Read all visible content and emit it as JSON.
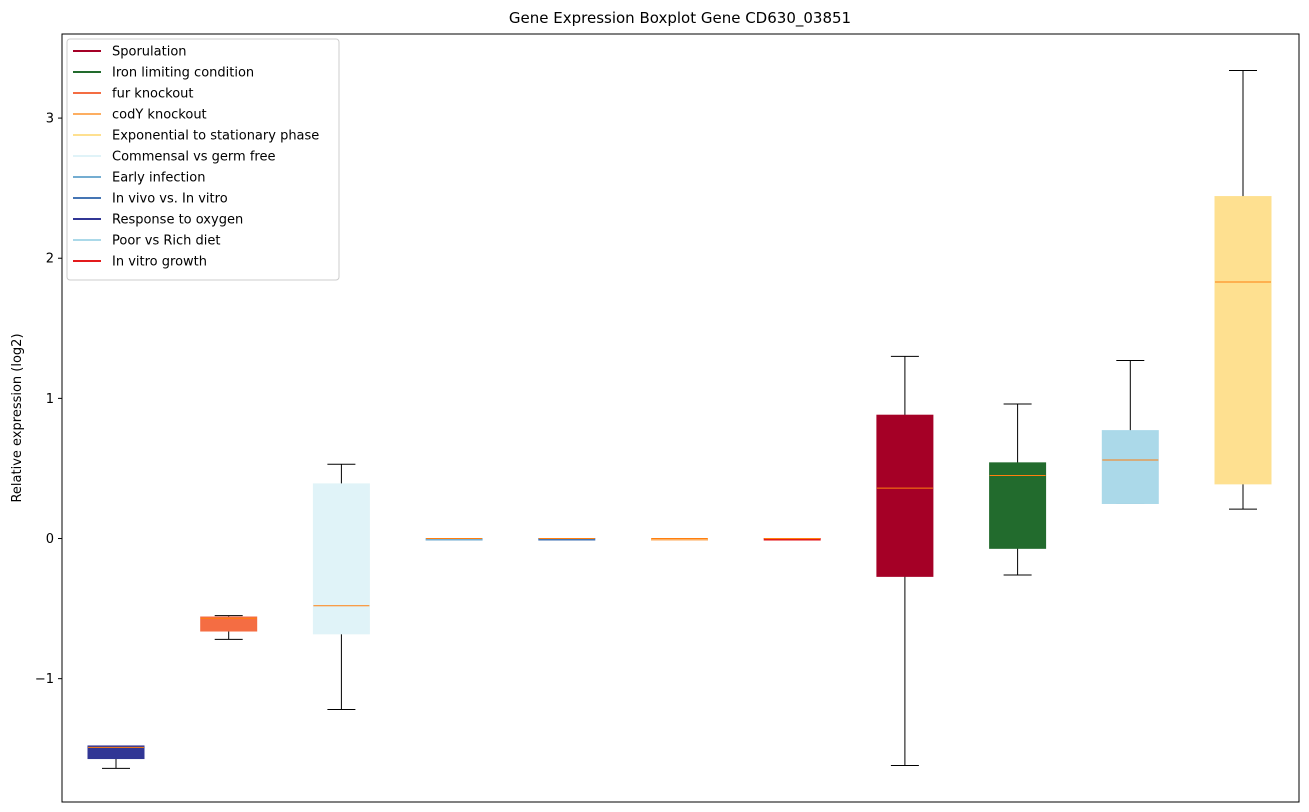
{
  "chart_data": {
    "type": "boxplot",
    "title": "Gene Expression Boxplot Gene CD630_03851",
    "xlabel": "",
    "ylabel": "Relative expression (log2)",
    "ylim": [
      -1.88,
      3.6
    ],
    "yticks": [
      -1,
      0,
      1,
      2,
      3
    ],
    "yticklabels": [
      "−1",
      "0",
      "1",
      "2",
      "3"
    ],
    "grid": false,
    "legend_position": "top-left",
    "legend": [
      {
        "label": "Sporulation",
        "color": "#a50026"
      },
      {
        "label": "Iron limiting condition",
        "color": "#226b2d"
      },
      {
        "label": "fur knockout",
        "color": "#f46d43"
      },
      {
        "label": "codY knockout",
        "color": "#fdae61"
      },
      {
        "label": "Exponential to stationary phase",
        "color": "#fee090"
      },
      {
        "label": "Commensal vs germ free",
        "color": "#e0f3f8"
      },
      {
        "label": "Early infection",
        "color": "#74add1"
      },
      {
        "label": "In vivo vs. In vitro",
        "color": "#4575b4"
      },
      {
        "label": "Response to oxygen",
        "color": "#313695"
      },
      {
        "label": "Poor vs Rich diet",
        "color": "#abd9e9"
      },
      {
        "label": "In vitro growth",
        "color": "#e31a1c"
      }
    ],
    "boxes": [
      {
        "group": "Response to oxygen",
        "color": "#313695",
        "whisker_low": -1.64,
        "q1": -1.57,
        "median": -1.49,
        "q3": -1.48,
        "whisker_high": -1.48
      },
      {
        "group": "fur knockout",
        "color": "#f46d43",
        "whisker_low": -0.72,
        "q1": -0.66,
        "median": -0.57,
        "q3": -0.56,
        "whisker_high": -0.55
      },
      {
        "group": "Commensal vs germ free",
        "color": "#e0f3f8",
        "whisker_low": -1.22,
        "q1": -0.68,
        "median": -0.48,
        "q3": 0.39,
        "whisker_high": 0.53
      },
      {
        "group": "Early infection",
        "color": "#74add1",
        "whisker_low": 0,
        "q1": 0,
        "median": 0,
        "q3": 0,
        "whisker_high": 0
      },
      {
        "group": "In vivo vs. In vitro",
        "color": "#4575b4",
        "whisker_low": 0,
        "q1": 0,
        "median": 0,
        "q3": 0,
        "whisker_high": 0
      },
      {
        "group": "codY knockout",
        "color": "#fdae61",
        "whisker_low": 0,
        "q1": 0,
        "median": 0,
        "q3": 0,
        "whisker_high": 0
      },
      {
        "group": "In vitro growth",
        "color": "#e31a1c",
        "whisker_low": 0,
        "q1": 0,
        "median": 0,
        "q3": 0,
        "whisker_high": 0
      },
      {
        "group": "Sporulation",
        "color": "#a50026",
        "whisker_low": -1.62,
        "q1": -0.27,
        "median": 0.36,
        "q3": 0.88,
        "whisker_high": 1.3
      },
      {
        "group": "Iron limiting condition",
        "color": "#226b2d",
        "whisker_low": -0.26,
        "q1": -0.07,
        "median": 0.45,
        "q3": 0.54,
        "whisker_high": 0.96
      },
      {
        "group": "Poor vs Rich diet",
        "color": "#abd9e9",
        "whisker_low": 0.25,
        "q1": 0.25,
        "median": 0.56,
        "q3": 0.77,
        "whisker_high": 1.27
      },
      {
        "group": "Exponential to stationary phase",
        "color": "#fee090",
        "whisker_low": 0.21,
        "q1": 0.39,
        "median": 1.83,
        "q3": 2.44,
        "whisker_high": 3.34
      }
    ],
    "median_color": "#ff7f0e",
    "whisker_color": "#000000"
  }
}
